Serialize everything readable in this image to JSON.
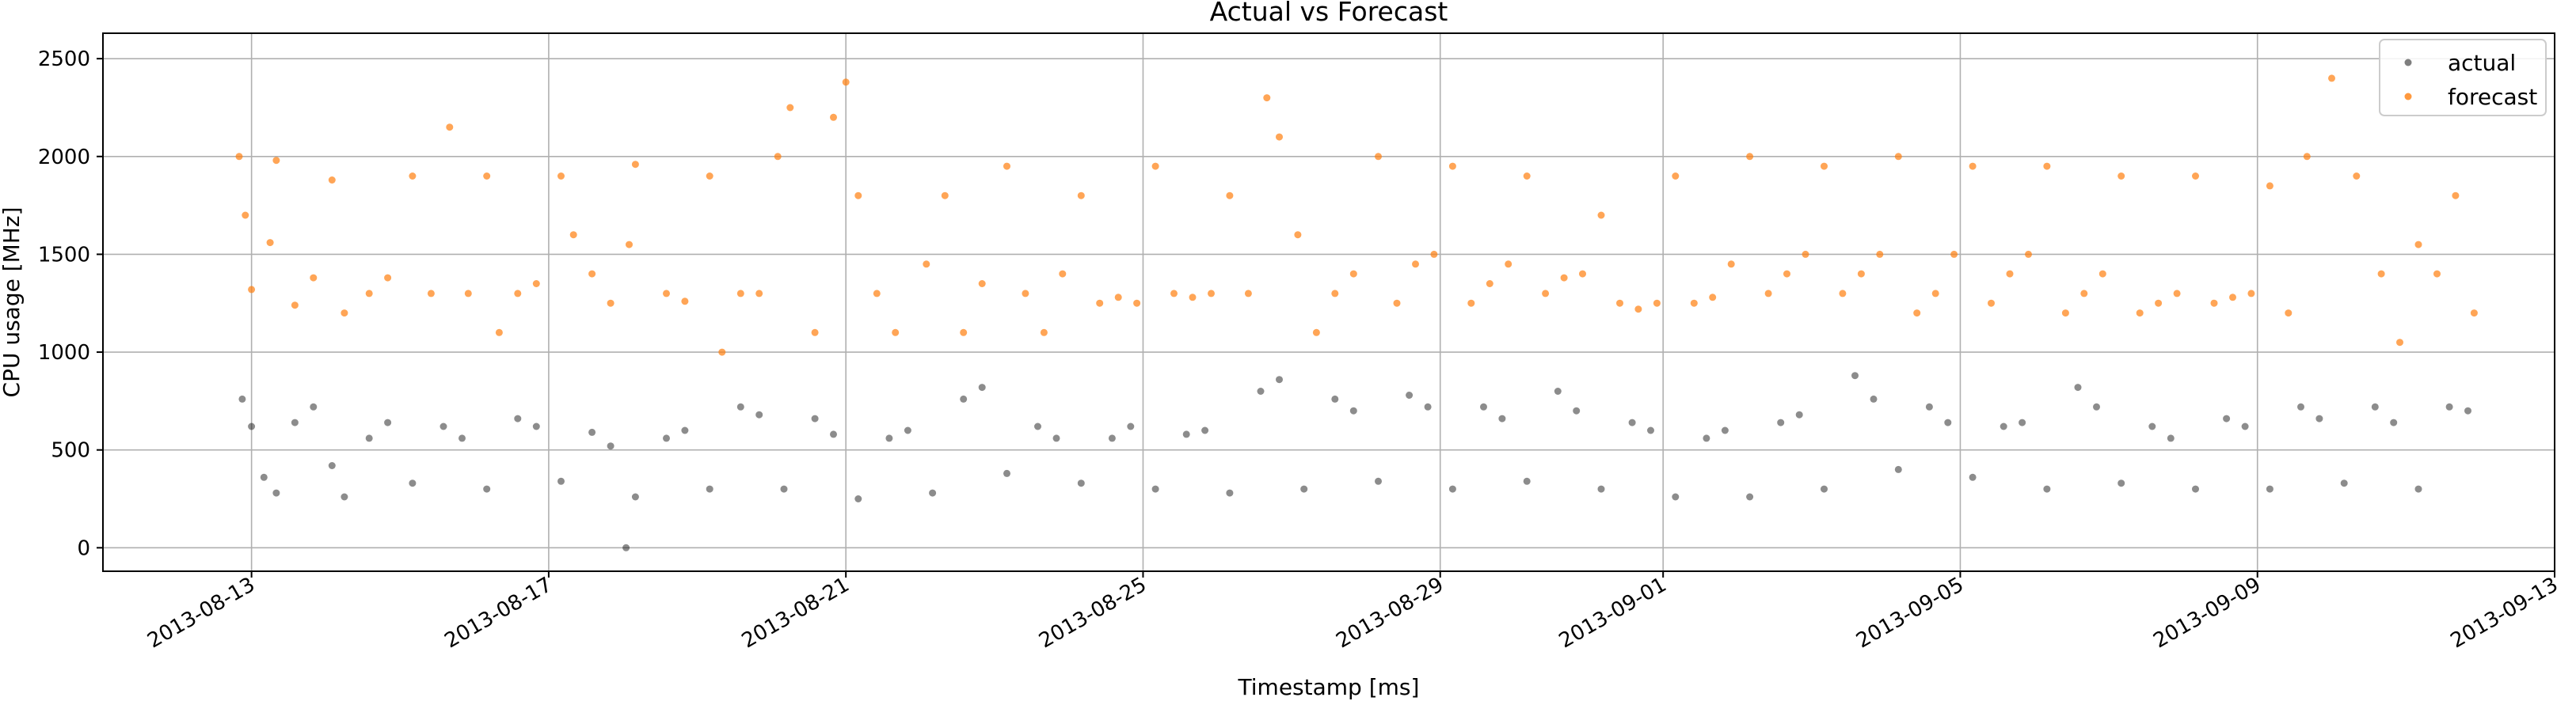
{
  "chart_data": {
    "type": "scatter",
    "title": "Actual vs Forecast",
    "xlabel": "Timestamp [ms]",
    "ylabel": "CPU usage [MHz]",
    "x_axis_type": "date",
    "xlim": [
      "2013-08-11T00:00",
      "2013-09-13T00:00"
    ],
    "ylim": [
      -120,
      2630
    ],
    "x_ticks": [
      "2013-08-13",
      "2013-08-17",
      "2013-08-21",
      "2013-08-25",
      "2013-08-29",
      "2013-09-01",
      "2013-09-05",
      "2013-09-09",
      "2013-09-13"
    ],
    "y_ticks": [
      0,
      500,
      1000,
      1500,
      2000,
      2500
    ],
    "grid": true,
    "legend_position": "top-right",
    "series": [
      {
        "name": "actual",
        "color": "#000000",
        "opacity": 0.45,
        "points": [
          [
            "2013-08-12T21:00",
            760
          ],
          [
            "2013-08-13T00:00",
            620
          ],
          [
            "2013-08-13T04:00",
            360
          ],
          [
            "2013-08-13T08:00",
            280
          ],
          [
            "2013-08-13T14:00",
            640
          ],
          [
            "2013-08-13T20:00",
            720
          ],
          [
            "2013-08-14T02:00",
            420
          ],
          [
            "2013-08-14T06:00",
            260
          ],
          [
            "2013-08-14T14:00",
            560
          ],
          [
            "2013-08-14T20:00",
            640
          ],
          [
            "2013-08-15T04:00",
            330
          ],
          [
            "2013-08-15T14:00",
            620
          ],
          [
            "2013-08-15T20:00",
            560
          ],
          [
            "2013-08-16T04:00",
            300
          ],
          [
            "2013-08-16T14:00",
            660
          ],
          [
            "2013-08-16T20:00",
            620
          ],
          [
            "2013-08-17T04:00",
            340
          ],
          [
            "2013-08-17T14:00",
            590
          ],
          [
            "2013-08-17T20:00",
            520
          ],
          [
            "2013-08-18T01:00",
            0
          ],
          [
            "2013-08-18T04:00",
            260
          ],
          [
            "2013-08-18T14:00",
            560
          ],
          [
            "2013-08-18T20:00",
            600
          ],
          [
            "2013-08-19T04:00",
            300
          ],
          [
            "2013-08-19T14:00",
            720
          ],
          [
            "2013-08-19T20:00",
            680
          ],
          [
            "2013-08-20T04:00",
            300
          ],
          [
            "2013-08-20T14:00",
            660
          ],
          [
            "2013-08-20T20:00",
            580
          ],
          [
            "2013-08-21T04:00",
            250
          ],
          [
            "2013-08-21T14:00",
            560
          ],
          [
            "2013-08-21T20:00",
            600
          ],
          [
            "2013-08-22T04:00",
            280
          ],
          [
            "2013-08-22T14:00",
            760
          ],
          [
            "2013-08-22T20:00",
            820
          ],
          [
            "2013-08-23T04:00",
            380
          ],
          [
            "2013-08-23T14:00",
            620
          ],
          [
            "2013-08-23T20:00",
            560
          ],
          [
            "2013-08-24T04:00",
            330
          ],
          [
            "2013-08-24T14:00",
            560
          ],
          [
            "2013-08-24T20:00",
            620
          ],
          [
            "2013-08-25T04:00",
            300
          ],
          [
            "2013-08-25T14:00",
            580
          ],
          [
            "2013-08-25T20:00",
            600
          ],
          [
            "2013-08-26T04:00",
            280
          ],
          [
            "2013-08-26T14:00",
            800
          ],
          [
            "2013-08-26T20:00",
            860
          ],
          [
            "2013-08-27T04:00",
            300
          ],
          [
            "2013-08-27T14:00",
            760
          ],
          [
            "2013-08-27T20:00",
            700
          ],
          [
            "2013-08-28T04:00",
            340
          ],
          [
            "2013-08-28T14:00",
            780
          ],
          [
            "2013-08-28T20:00",
            720
          ],
          [
            "2013-08-29T04:00",
            300
          ],
          [
            "2013-08-29T14:00",
            720
          ],
          [
            "2013-08-29T20:00",
            660
          ],
          [
            "2013-08-30T04:00",
            340
          ],
          [
            "2013-08-30T14:00",
            800
          ],
          [
            "2013-08-30T20:00",
            700
          ],
          [
            "2013-08-31T04:00",
            300
          ],
          [
            "2013-08-31T14:00",
            640
          ],
          [
            "2013-08-31T20:00",
            600
          ],
          [
            "2013-09-01T04:00",
            260
          ],
          [
            "2013-09-01T14:00",
            560
          ],
          [
            "2013-09-01T20:00",
            600
          ],
          [
            "2013-09-02T04:00",
            260
          ],
          [
            "2013-09-02T14:00",
            640
          ],
          [
            "2013-09-02T20:00",
            680
          ],
          [
            "2013-09-03T04:00",
            300
          ],
          [
            "2013-09-03T14:00",
            880
          ],
          [
            "2013-09-03T20:00",
            760
          ],
          [
            "2013-09-04T04:00",
            400
          ],
          [
            "2013-09-04T14:00",
            720
          ],
          [
            "2013-09-04T20:00",
            640
          ],
          [
            "2013-09-05T04:00",
            360
          ],
          [
            "2013-09-05T14:00",
            620
          ],
          [
            "2013-09-05T20:00",
            640
          ],
          [
            "2013-09-06T04:00",
            300
          ],
          [
            "2013-09-06T14:00",
            820
          ],
          [
            "2013-09-06T20:00",
            720
          ],
          [
            "2013-09-07T04:00",
            330
          ],
          [
            "2013-09-07T14:00",
            620
          ],
          [
            "2013-09-07T20:00",
            560
          ],
          [
            "2013-09-08T04:00",
            300
          ],
          [
            "2013-09-08T14:00",
            660
          ],
          [
            "2013-09-08T20:00",
            620
          ],
          [
            "2013-09-09T04:00",
            300
          ],
          [
            "2013-09-09T14:00",
            720
          ],
          [
            "2013-09-09T20:00",
            660
          ],
          [
            "2013-09-10T04:00",
            330
          ],
          [
            "2013-09-10T14:00",
            720
          ],
          [
            "2013-09-10T20:00",
            640
          ],
          [
            "2013-09-11T04:00",
            300
          ],
          [
            "2013-09-11T14:00",
            720
          ],
          [
            "2013-09-11T20:00",
            700
          ]
        ]
      },
      {
        "name": "forecast",
        "color": "#ff7f0e",
        "opacity": 0.7,
        "points": [
          [
            "2013-08-12T20:00",
            2000
          ],
          [
            "2013-08-12T22:00",
            1700
          ],
          [
            "2013-08-13T00:00",
            1320
          ],
          [
            "2013-08-13T06:00",
            1560
          ],
          [
            "2013-08-13T08:00",
            1980
          ],
          [
            "2013-08-13T14:00",
            1240
          ],
          [
            "2013-08-13T20:00",
            1380
          ],
          [
            "2013-08-14T02:00",
            1880
          ],
          [
            "2013-08-14T06:00",
            1200
          ],
          [
            "2013-08-14T14:00",
            1300
          ],
          [
            "2013-08-14T20:00",
            1380
          ],
          [
            "2013-08-15T04:00",
            1900
          ],
          [
            "2013-08-15T10:00",
            1300
          ],
          [
            "2013-08-15T16:00",
            2150
          ],
          [
            "2013-08-15T22:00",
            1300
          ],
          [
            "2013-08-16T04:00",
            1900
          ],
          [
            "2013-08-16T08:00",
            1100
          ],
          [
            "2013-08-16T14:00",
            1300
          ],
          [
            "2013-08-16T20:00",
            1350
          ],
          [
            "2013-08-17T04:00",
            1900
          ],
          [
            "2013-08-17T08:00",
            1600
          ],
          [
            "2013-08-17T14:00",
            1400
          ],
          [
            "2013-08-17T20:00",
            1250
          ],
          [
            "2013-08-18T02:00",
            1550
          ],
          [
            "2013-08-18T04:00",
            1960
          ],
          [
            "2013-08-18T14:00",
            1300
          ],
          [
            "2013-08-18T20:00",
            1260
          ],
          [
            "2013-08-19T04:00",
            1900
          ],
          [
            "2013-08-19T08:00",
            1000
          ],
          [
            "2013-08-19T14:00",
            1300
          ],
          [
            "2013-08-19T20:00",
            1300
          ],
          [
            "2013-08-20T02:00",
            2000
          ],
          [
            "2013-08-20T06:00",
            2250
          ],
          [
            "2013-08-20T14:00",
            1100
          ],
          [
            "2013-08-20T20:00",
            2200
          ],
          [
            "2013-08-21T00:00",
            2380
          ],
          [
            "2013-08-21T04:00",
            1800
          ],
          [
            "2013-08-21T10:00",
            1300
          ],
          [
            "2013-08-21T16:00",
            1100
          ],
          [
            "2013-08-22T02:00",
            1450
          ],
          [
            "2013-08-22T08:00",
            1800
          ],
          [
            "2013-08-22T14:00",
            1100
          ],
          [
            "2013-08-22T20:00",
            1350
          ],
          [
            "2013-08-23T04:00",
            1950
          ],
          [
            "2013-08-23T10:00",
            1300
          ],
          [
            "2013-08-23T16:00",
            1100
          ],
          [
            "2013-08-23T22:00",
            1400
          ],
          [
            "2013-08-24T04:00",
            1800
          ],
          [
            "2013-08-24T10:00",
            1250
          ],
          [
            "2013-08-24T16:00",
            1280
          ],
          [
            "2013-08-24T22:00",
            1250
          ],
          [
            "2013-08-25T04:00",
            1950
          ],
          [
            "2013-08-25T10:00",
            1300
          ],
          [
            "2013-08-25T16:00",
            1280
          ],
          [
            "2013-08-25T22:00",
            1300
          ],
          [
            "2013-08-26T04:00",
            1800
          ],
          [
            "2013-08-26T10:00",
            1300
          ],
          [
            "2013-08-26T16:00",
            2300
          ],
          [
            "2013-08-26T20:00",
            2100
          ],
          [
            "2013-08-27T02:00",
            1600
          ],
          [
            "2013-08-27T08:00",
            1100
          ],
          [
            "2013-08-27T14:00",
            1300
          ],
          [
            "2013-08-27T20:00",
            1400
          ],
          [
            "2013-08-28T04:00",
            2000
          ],
          [
            "2013-08-28T10:00",
            1250
          ],
          [
            "2013-08-28T16:00",
            1450
          ],
          [
            "2013-08-28T22:00",
            1500
          ],
          [
            "2013-08-29T04:00",
            1950
          ],
          [
            "2013-08-29T10:00",
            1250
          ],
          [
            "2013-08-29T16:00",
            1350
          ],
          [
            "2013-08-29T22:00",
            1450
          ],
          [
            "2013-08-30T04:00",
            1900
          ],
          [
            "2013-08-30T10:00",
            1300
          ],
          [
            "2013-08-30T16:00",
            1380
          ],
          [
            "2013-08-30T22:00",
            1400
          ],
          [
            "2013-08-31T04:00",
            1700
          ],
          [
            "2013-08-31T10:00",
            1250
          ],
          [
            "2013-08-31T16:00",
            1220
          ],
          [
            "2013-08-31T22:00",
            1250
          ],
          [
            "2013-09-01T04:00",
            1900
          ],
          [
            "2013-09-01T10:00",
            1250
          ],
          [
            "2013-09-01T16:00",
            1280
          ],
          [
            "2013-09-01T22:00",
            1450
          ],
          [
            "2013-09-02T04:00",
            2000
          ],
          [
            "2013-09-02T10:00",
            1300
          ],
          [
            "2013-09-02T16:00",
            1400
          ],
          [
            "2013-09-02T22:00",
            1500
          ],
          [
            "2013-09-03T04:00",
            1950
          ],
          [
            "2013-09-03T10:00",
            1300
          ],
          [
            "2013-09-03T16:00",
            1400
          ],
          [
            "2013-09-03T22:00",
            1500
          ],
          [
            "2013-09-04T04:00",
            2000
          ],
          [
            "2013-09-04T10:00",
            1200
          ],
          [
            "2013-09-04T16:00",
            1300
          ],
          [
            "2013-09-04T22:00",
            1500
          ],
          [
            "2013-09-05T04:00",
            1950
          ],
          [
            "2013-09-05T10:00",
            1250
          ],
          [
            "2013-09-05T16:00",
            1400
          ],
          [
            "2013-09-05T22:00",
            1500
          ],
          [
            "2013-09-06T04:00",
            1950
          ],
          [
            "2013-09-06T10:00",
            1200
          ],
          [
            "2013-09-06T16:00",
            1300
          ],
          [
            "2013-09-06T22:00",
            1400
          ],
          [
            "2013-09-07T04:00",
            1900
          ],
          [
            "2013-09-07T10:00",
            1200
          ],
          [
            "2013-09-07T16:00",
            1250
          ],
          [
            "2013-09-07T22:00",
            1300
          ],
          [
            "2013-09-08T04:00",
            1900
          ],
          [
            "2013-09-08T10:00",
            1250
          ],
          [
            "2013-09-08T16:00",
            1280
          ],
          [
            "2013-09-08T22:00",
            1300
          ],
          [
            "2013-09-09T04:00",
            1850
          ],
          [
            "2013-09-09T10:00",
            1200
          ],
          [
            "2013-09-09T16:00",
            2000
          ],
          [
            "2013-09-10T00:00",
            2400
          ],
          [
            "2013-09-10T08:00",
            1900
          ],
          [
            "2013-09-10T16:00",
            1400
          ],
          [
            "2013-09-10T22:00",
            1050
          ],
          [
            "2013-09-11T04:00",
            1550
          ],
          [
            "2013-09-11T10:00",
            1400
          ],
          [
            "2013-09-11T16:00",
            1800
          ],
          [
            "2013-09-11T22:00",
            1200
          ]
        ]
      }
    ]
  }
}
